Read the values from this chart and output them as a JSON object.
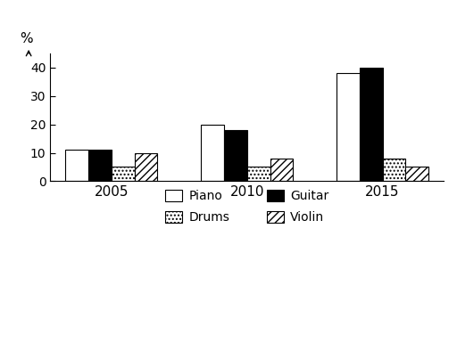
{
  "years": [
    "2005",
    "2010",
    "2015"
  ],
  "instruments": [
    "Piano",
    "Guitar",
    "Drums",
    "Violin"
  ],
  "values": {
    "Piano": [
      11,
      20,
      38
    ],
    "Guitar": [
      11,
      18,
      40
    ],
    "Drums": [
      5,
      5,
      8
    ],
    "Violin": [
      10,
      8,
      5
    ]
  },
  "colors": {
    "Piano": "white",
    "Guitar": "black",
    "Drums": "white",
    "Violin": "white"
  },
  "hatches": {
    "Piano": "",
    "Guitar": "",
    "Drums": "....",
    "Violin": "////"
  },
  "ylabel": "%",
  "ylim": [
    0,
    45
  ],
  "yticks": [
    0,
    10,
    20,
    30,
    40
  ],
  "bar_width": 0.17,
  "background_color": "#ffffff",
  "legend_order": [
    "Piano",
    "Drums",
    "Guitar",
    "Violin"
  ]
}
